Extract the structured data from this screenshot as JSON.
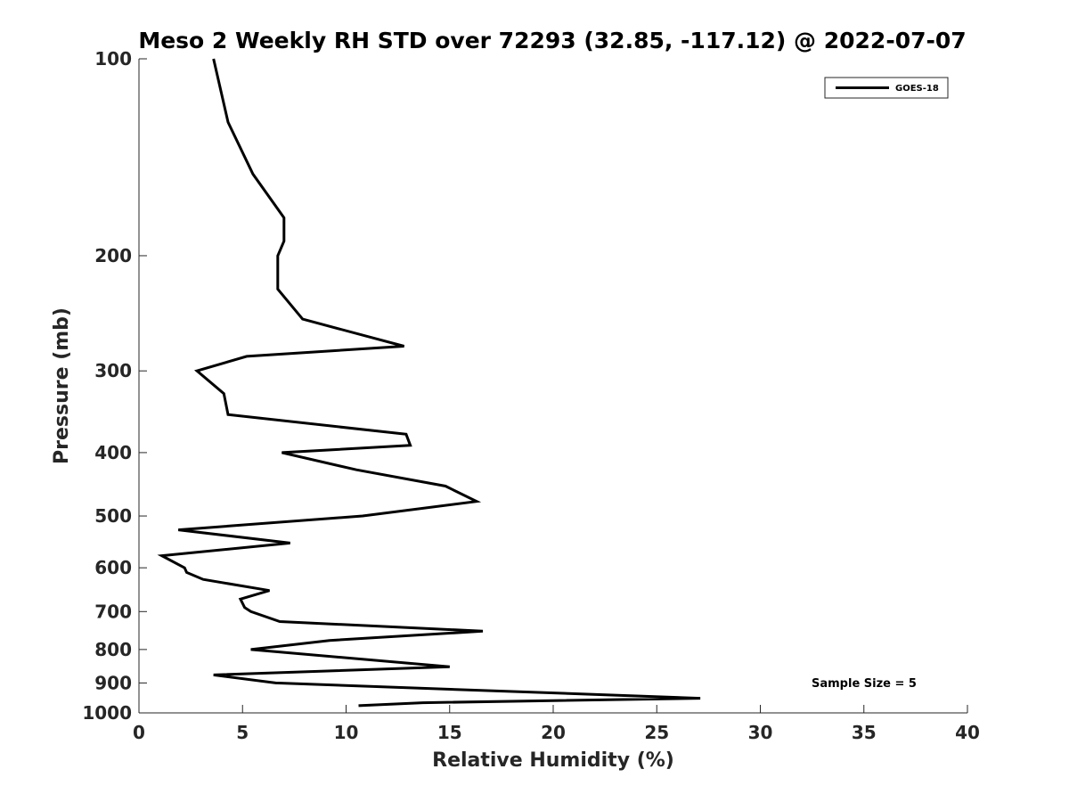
{
  "chart_data": {
    "type": "line",
    "title": "Meso 2 Weekly RH STD over 72293 (32.85, -117.12) @ 2022-07-07",
    "xlabel": "Relative Humidity (%)",
    "ylabel": "Pressure (mb)",
    "xlim": [
      0,
      40
    ],
    "ylim": [
      100,
      1000
    ],
    "yscale": "log",
    "y_reversed": true,
    "grid": false,
    "x_ticks": [
      0,
      5,
      10,
      15,
      20,
      25,
      30,
      35,
      40
    ],
    "x_tick_labels": [
      "0",
      "5",
      "10",
      "15",
      "20",
      "25",
      "30",
      "35",
      "40"
    ],
    "y_ticks": [
      100,
      200,
      300,
      400,
      500,
      600,
      700,
      800,
      900,
      1000
    ],
    "y_tick_labels": [
      "100",
      "200",
      "300",
      "400",
      "500",
      "600",
      "700",
      "800",
      "900",
      "1000"
    ],
    "legend": {
      "position": "top-right",
      "entries": [
        "GOES-18"
      ]
    },
    "annotation": "Sample Size = 5",
    "series": [
      {
        "name": "GOES-18",
        "color": "#000000",
        "points": [
          {
            "x": 3.6,
            "p": 100
          },
          {
            "x": 4.3,
            "p": 125
          },
          {
            "x": 5.5,
            "p": 150
          },
          {
            "x": 7.0,
            "p": 175
          },
          {
            "x": 7.0,
            "p": 190
          },
          {
            "x": 6.7,
            "p": 200
          },
          {
            "x": 6.7,
            "p": 225
          },
          {
            "x": 7.9,
            "p": 250
          },
          {
            "x": 12.8,
            "p": 275
          },
          {
            "x": 5.2,
            "p": 285
          },
          {
            "x": 2.8,
            "p": 300
          },
          {
            "x": 4.1,
            "p": 325
          },
          {
            "x": 4.3,
            "p": 350
          },
          {
            "x": 12.9,
            "p": 375
          },
          {
            "x": 13.1,
            "p": 390
          },
          {
            "x": 6.9,
            "p": 400
          },
          {
            "x": 10.5,
            "p": 425
          },
          {
            "x": 14.8,
            "p": 450
          },
          {
            "x": 16.3,
            "p": 475
          },
          {
            "x": 10.8,
            "p": 500
          },
          {
            "x": 1.9,
            "p": 525
          },
          {
            "x": 7.3,
            "p": 550
          },
          {
            "x": 1.1,
            "p": 575
          },
          {
            "x": 2.2,
            "p": 600
          },
          {
            "x": 2.3,
            "p": 610
          },
          {
            "x": 3.1,
            "p": 625
          },
          {
            "x": 6.3,
            "p": 650
          },
          {
            "x": 4.9,
            "p": 670
          },
          {
            "x": 5.1,
            "p": 690
          },
          {
            "x": 5.4,
            "p": 700
          },
          {
            "x": 6.8,
            "p": 725
          },
          {
            "x": 16.6,
            "p": 750
          },
          {
            "x": 9.2,
            "p": 775
          },
          {
            "x": 5.4,
            "p": 800
          },
          {
            "x": 15.0,
            "p": 850
          },
          {
            "x": 3.6,
            "p": 875
          },
          {
            "x": 6.6,
            "p": 900
          },
          {
            "x": 27.1,
            "p": 950
          },
          {
            "x": 13.7,
            "p": 965
          },
          {
            "x": 10.6,
            "p": 975
          }
        ]
      }
    ]
  }
}
